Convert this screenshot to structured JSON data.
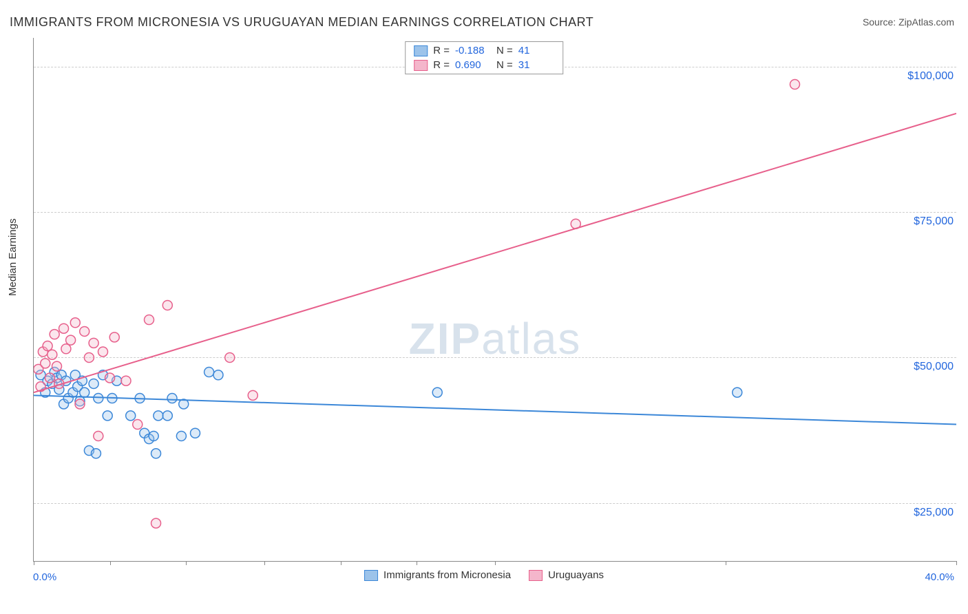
{
  "title": "IMMIGRANTS FROM MICRONESIA VS URUGUAYAN MEDIAN EARNINGS CORRELATION CHART",
  "source_label": "Source: ",
  "source_name": "ZipAtlas.com",
  "watermark_a": "ZIP",
  "watermark_b": "atlas",
  "ylabel": "Median Earnings",
  "chart": {
    "type": "scatter",
    "xlim": [
      0,
      40
    ],
    "ylim": [
      15000,
      105000
    ],
    "x_tick_start": "0.0%",
    "x_tick_end": "40.0%",
    "x_minor_ticks_pct": [
      0,
      3.3,
      6.6,
      10,
      13.3,
      16.6,
      20,
      30,
      40
    ],
    "y_ticks": [
      {
        "v": 25000,
        "label": "$25,000"
      },
      {
        "v": 50000,
        "label": "$50,000"
      },
      {
        "v": 75000,
        "label": "$75,000"
      },
      {
        "v": 100000,
        "label": "$100,000"
      }
    ],
    "grid_color": "#cccccc",
    "axis_color": "#888888",
    "background_color": "#ffffff",
    "marker_radius": 7,
    "marker_stroke_width": 1.5,
    "marker_fill_opacity": 0.35,
    "line_width": 2
  },
  "series": [
    {
      "id": "micronesia",
      "label": "Immigrants from Micronesia",
      "color_stroke": "#3b87d8",
      "color_fill": "#9cc3ea",
      "r_value": "-0.188",
      "n_value": "41",
      "trend": {
        "x1": 0,
        "y1": 43500,
        "x2": 40,
        "y2": 38500
      },
      "points": [
        [
          0.3,
          47000
        ],
        [
          0.5,
          44000
        ],
        [
          0.6,
          46000
        ],
        [
          0.8,
          45500
        ],
        [
          0.9,
          47500
        ],
        [
          1.0,
          46500
        ],
        [
          1.1,
          44500
        ],
        [
          1.2,
          47000
        ],
        [
          1.3,
          42000
        ],
        [
          1.4,
          46000
        ],
        [
          1.5,
          43000
        ],
        [
          1.7,
          44000
        ],
        [
          1.8,
          47000
        ],
        [
          1.9,
          45000
        ],
        [
          2.0,
          42500
        ],
        [
          2.1,
          46000
        ],
        [
          2.2,
          44000
        ],
        [
          2.4,
          34000
        ],
        [
          2.6,
          45500
        ],
        [
          2.7,
          33500
        ],
        [
          2.8,
          43000
        ],
        [
          3.0,
          47000
        ],
        [
          3.2,
          40000
        ],
        [
          3.4,
          43000
        ],
        [
          3.6,
          46000
        ],
        [
          4.2,
          40000
        ],
        [
          4.6,
          43000
        ],
        [
          4.8,
          37000
        ],
        [
          5.0,
          36000
        ],
        [
          5.2,
          36500
        ],
        [
          5.3,
          33500
        ],
        [
          5.4,
          40000
        ],
        [
          5.8,
          40000
        ],
        [
          6.0,
          43000
        ],
        [
          6.4,
          36500
        ],
        [
          6.5,
          42000
        ],
        [
          7.0,
          37000
        ],
        [
          7.6,
          47500
        ],
        [
          8.0,
          47000
        ],
        [
          17.5,
          44000
        ],
        [
          30.5,
          44000
        ]
      ]
    },
    {
      "id": "uruguayans",
      "label": "Uruguayans",
      "color_stroke": "#e75f8b",
      "color_fill": "#f4b6cb",
      "r_value": "0.690",
      "n_value": "31",
      "trend": {
        "x1": 0,
        "y1": 44000,
        "x2": 40,
        "y2": 92000
      },
      "points": [
        [
          0.2,
          48000
        ],
        [
          0.3,
          45000
        ],
        [
          0.4,
          51000
        ],
        [
          0.5,
          49000
        ],
        [
          0.6,
          52000
        ],
        [
          0.7,
          46500
        ],
        [
          0.8,
          50500
        ],
        [
          0.9,
          54000
        ],
        [
          1.0,
          48500
        ],
        [
          1.1,
          45500
        ],
        [
          1.3,
          55000
        ],
        [
          1.4,
          51500
        ],
        [
          1.6,
          53000
        ],
        [
          1.8,
          56000
        ],
        [
          2.0,
          42000
        ],
        [
          2.2,
          54500
        ],
        [
          2.4,
          50000
        ],
        [
          2.6,
          52500
        ],
        [
          2.8,
          36500
        ],
        [
          3.0,
          51000
        ],
        [
          3.3,
          46500
        ],
        [
          3.5,
          53500
        ],
        [
          4.0,
          46000
        ],
        [
          4.5,
          38500
        ],
        [
          5.0,
          56500
        ],
        [
          5.3,
          21500
        ],
        [
          5.8,
          59000
        ],
        [
          8.5,
          50000
        ],
        [
          9.5,
          43500
        ],
        [
          23.5,
          73000
        ],
        [
          33.0,
          97000
        ]
      ]
    }
  ],
  "legend_top": {
    "r_label": "R =",
    "n_label": "N ="
  }
}
